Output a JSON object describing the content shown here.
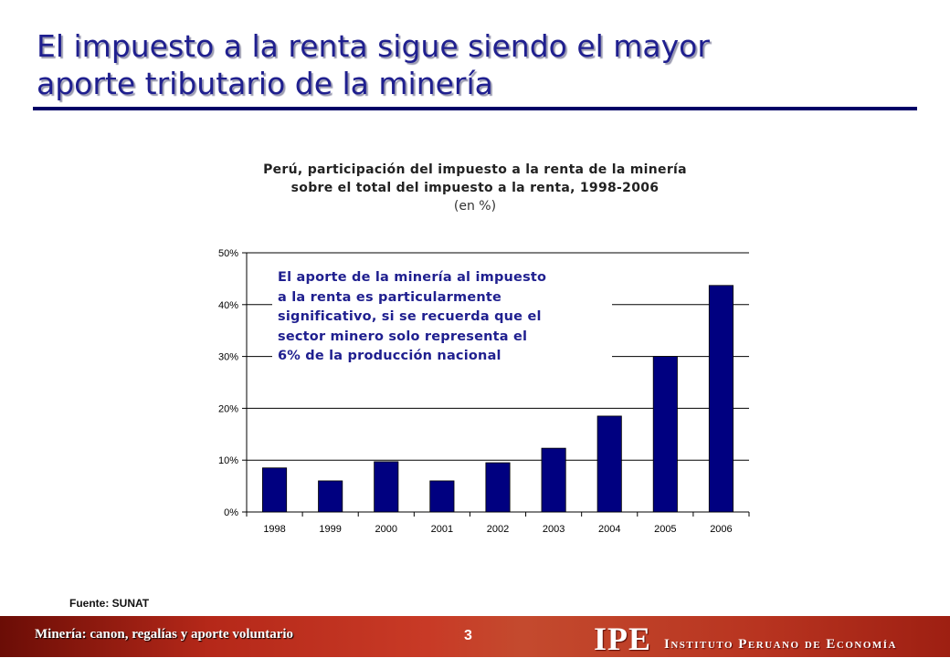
{
  "slide": {
    "title_line1": "El impuesto a la renta sigue siendo el mayor",
    "title_line2": "aporte tributario de la minería"
  },
  "chart_data": {
    "type": "bar",
    "title": "Perú, participación del impuesto a la renta de la minería sobre el total del impuesto a la renta, 1998-2006",
    "title_line1": "Perú, participación del impuesto a la renta de la minería",
    "title_line2": "sobre el total del impuesto a la renta, 1998-2006",
    "subtitle": "(en %)",
    "categories": [
      "1998",
      "1999",
      "2000",
      "2001",
      "2002",
      "2003",
      "2004",
      "2005",
      "2006"
    ],
    "values": [
      8.5,
      6.0,
      9.7,
      6.0,
      9.5,
      12.3,
      18.5,
      30.0,
      43.7
    ],
    "ylim": [
      0,
      50
    ],
    "yticks": [
      0,
      10,
      20,
      30,
      40,
      50
    ],
    "ytick_labels": [
      "0%",
      "10%",
      "20%",
      "30%",
      "40%",
      "50%"
    ],
    "grid": "horizontal",
    "bar_color": "#000080",
    "annotation_lines": [
      "El aporte de la minería al impuesto",
      "a la renta es particularmente",
      "significativo, si se recuerda que el",
      "sector minero solo representa el",
      "6% de la producción nacional"
    ]
  },
  "source": "Fuente: SUNAT",
  "footer": {
    "left_text": "Minería: canon, regalías y aporte voluntario",
    "page_number": "3",
    "brand_acronym": "IPE",
    "brand_name": "Instituto Peruano de Economía"
  },
  "colors": {
    "title": "#1f1f8f",
    "rule": "#000066",
    "footer_bg": "#b52819"
  }
}
